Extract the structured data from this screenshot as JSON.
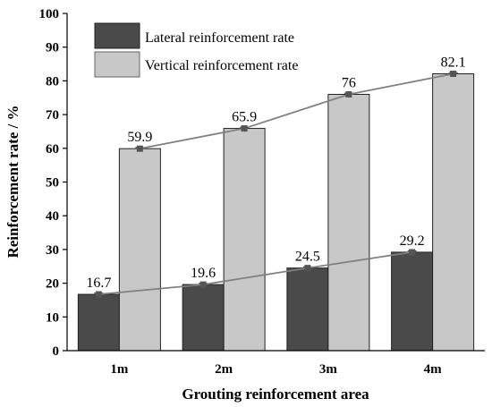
{
  "chart_data": {
    "type": "bar",
    "categories": [
      "1m",
      "2m",
      "3m",
      "4m"
    ],
    "series": [
      {
        "name": "Lateral reinforcement rate",
        "values": [
          16.7,
          19.6,
          24.5,
          29.2
        ],
        "color": "#4a4a4a"
      },
      {
        "name": "Vertical reinforcement rate",
        "values": [
          59.9,
          65.9,
          76,
          82.1
        ],
        "color": "#c8c8c8"
      }
    ],
    "data_labels": [
      [
        "16.7",
        "19.6",
        "24.5",
        "29.2"
      ],
      [
        "59.9",
        "65.9",
        "76",
        "82.1"
      ]
    ],
    "xlabel": "Grouting reinforcement area",
    "ylabel": "Reinforcement rate / %",
    "ylim": [
      0,
      100
    ],
    "yticks": [
      0,
      10,
      20,
      30,
      40,
      50,
      60,
      70,
      80,
      90,
      100
    ],
    "grid": false,
    "legend_position": "top-left",
    "trend_lines": true,
    "error_bars": true,
    "line_color": "#808080",
    "marker_color": "#555555"
  }
}
